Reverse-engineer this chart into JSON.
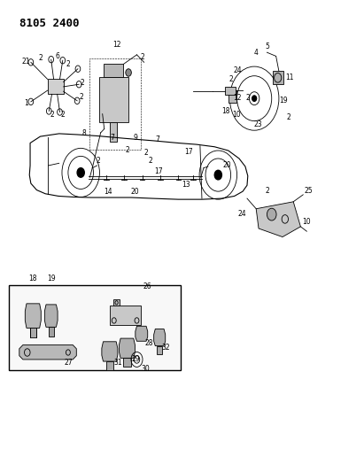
{
  "title": "8105 2400",
  "bg_color": "#ffffff",
  "line_color": "#000000",
  "fig_width": 4.11,
  "fig_height": 5.33,
  "dpi": 100
}
